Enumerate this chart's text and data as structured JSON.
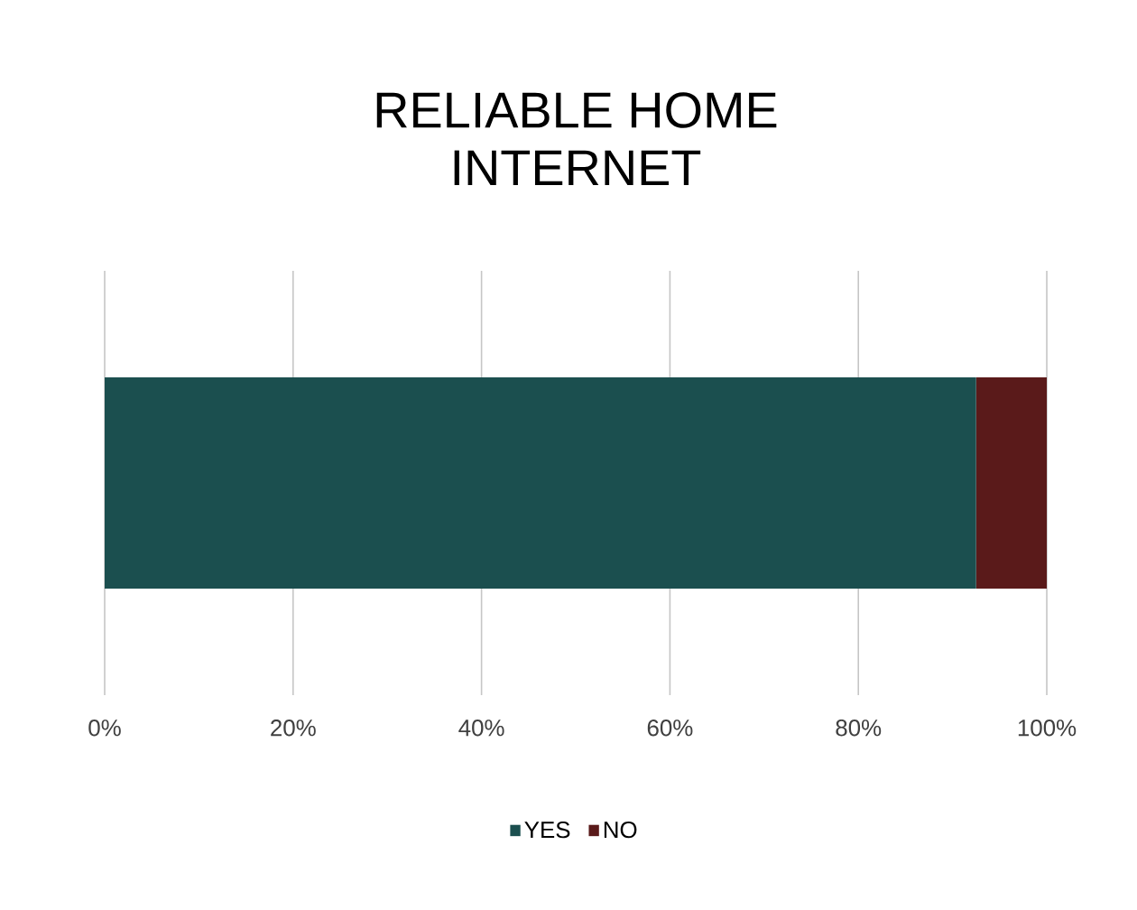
{
  "chart_data": {
    "type": "bar",
    "orientation": "horizontal",
    "stacked": true,
    "title": "RELIABLE HOME INTERNET",
    "categories": [
      null
    ],
    "series": [
      {
        "name": "YES",
        "color": "#1b4f4f",
        "values": [
          92.5
        ]
      },
      {
        "name": "NO",
        "color": "#5a1a1a",
        "values": [
          7.5
        ]
      }
    ],
    "xlim": [
      0,
      100
    ],
    "xticks": [
      {
        "value": 0,
        "label": "0%"
      },
      {
        "value": 20,
        "label": "20%"
      },
      {
        "value": 40,
        "label": "40%"
      },
      {
        "value": 60,
        "label": "60%"
      },
      {
        "value": 80,
        "label": "80%"
      },
      {
        "value": 100,
        "label": "100%"
      }
    ],
    "grid": "x",
    "legend": "bottom"
  }
}
